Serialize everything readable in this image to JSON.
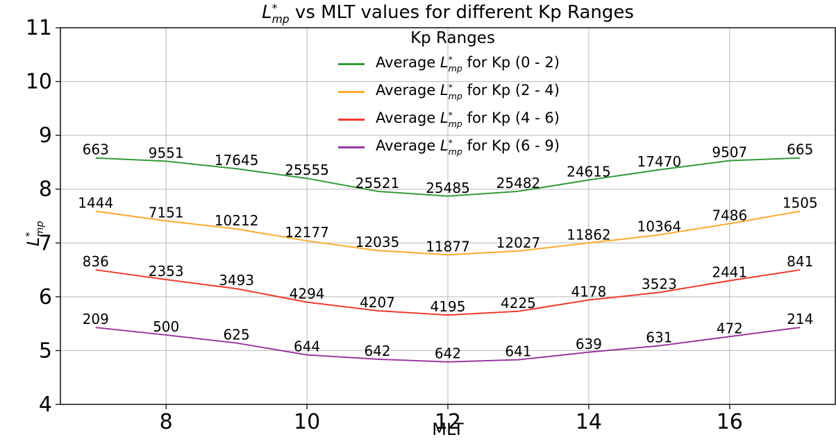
{
  "title": {
    "rest": " vs MLT values for different Kp Ranges"
  },
  "symbol": {
    "base": "L",
    "sup": "*",
    "sub": "mp"
  },
  "axes": {
    "xlabel": "MLT"
  },
  "legend": {
    "title": "Kp Ranges"
  },
  "colors": {
    "background": "#ffffff",
    "grid": "#b8b8b8",
    "spine": "#1a1a1a",
    "text": "#000000"
  },
  "chart_data": {
    "type": "line",
    "title": "L*_mp vs MLT values for different Kp Ranges",
    "xlabel": "MLT",
    "ylabel": "L*_mp",
    "xlim": [
      6.5,
      17.5
    ],
    "ylim": [
      4,
      11
    ],
    "xticks": [
      8,
      10,
      12,
      14,
      16
    ],
    "yticks": [
      4,
      5,
      6,
      7,
      8,
      9,
      10,
      11
    ],
    "grid": true,
    "legend_position": "upper center",
    "legend_frame": false,
    "x": [
      7,
      8,
      9,
      10,
      11,
      12,
      13,
      14,
      15,
      16,
      17
    ],
    "series": [
      {
        "name": "Average L*_mp for Kp (0 - 2)",
        "label_prefix": "Average ",
        "label_suffix": " for Kp (0 - 2)",
        "color": "#339a35",
        "values": [
          8.58,
          8.52,
          8.38,
          8.2,
          7.96,
          7.87,
          7.96,
          8.17,
          8.36,
          8.53,
          8.58
        ],
        "counts": [
          663,
          9551,
          17645,
          25555,
          25521,
          25485,
          25482,
          24615,
          17470,
          9507,
          665
        ]
      },
      {
        "name": "Average L*_mp for Kp (2 - 4)",
        "label_prefix": "Average ",
        "label_suffix": " for Kp (2 - 4)",
        "color": "#fdaa2a",
        "values": [
          7.59,
          7.41,
          7.26,
          7.04,
          6.86,
          6.78,
          6.85,
          7.0,
          7.15,
          7.36,
          7.59
        ],
        "counts": [
          1444,
          7151,
          10212,
          12177,
          12035,
          11877,
          12027,
          11862,
          10364,
          7486,
          1505
        ]
      },
      {
        "name": "Average L*_mp for Kp (4 - 6)",
        "label_prefix": "Average ",
        "label_suffix": " for Kp (4 - 6)",
        "color": "#f23a2e",
        "values": [
          6.5,
          6.32,
          6.15,
          5.9,
          5.74,
          5.66,
          5.73,
          5.94,
          6.08,
          6.3,
          6.5
        ],
        "counts": [
          836,
          2353,
          3493,
          4294,
          4207,
          4195,
          4225,
          4178,
          3523,
          2441,
          841
        ]
      },
      {
        "name": "Average L*_mp for Kp (6 - 9)",
        "label_prefix": "Average ",
        "label_suffix": " for Kp (6 - 9)",
        "color": "#99389f",
        "values": [
          5.43,
          5.29,
          5.14,
          4.92,
          4.84,
          4.79,
          4.83,
          4.97,
          5.09,
          5.26,
          5.43
        ],
        "counts": [
          209,
          500,
          625,
          644,
          642,
          642,
          641,
          639,
          631,
          472,
          214
        ]
      }
    ]
  }
}
